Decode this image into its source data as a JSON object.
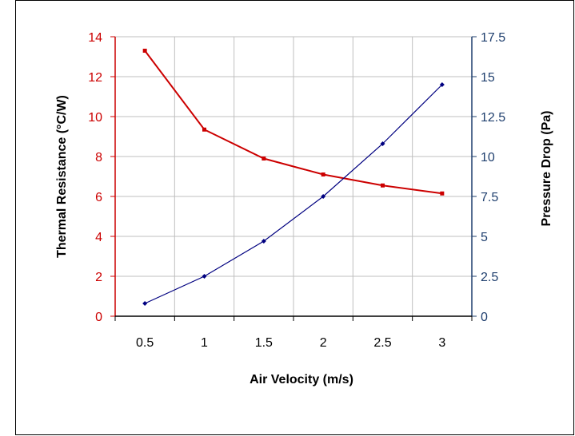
{
  "chart_data": {
    "type": "line",
    "title": "",
    "xlabel": "Air Velocity (m/s)",
    "ylabel_left": "Thermal Resistance (°C/W)",
    "ylabel_right": "Pressure Drop (Pa)",
    "categories": [
      "0.5",
      "1",
      "1.5",
      "2",
      "2.5",
      "3"
    ],
    "y_left": {
      "min": 0,
      "max": 14,
      "ticks": [
        "0",
        "2",
        "4",
        "6",
        "8",
        "10",
        "12",
        "14"
      ]
    },
    "y_right": {
      "min": 0,
      "max": 17.5,
      "ticks": [
        "0",
        "2.5",
        "5",
        "7.5",
        "10",
        "12.5",
        "15",
        "17.5"
      ]
    },
    "grid": true,
    "series": [
      {
        "axis": "left",
        "color": "#cc0000",
        "marker": "square",
        "values": [
          13.3,
          9.35,
          7.9,
          7.1,
          6.55,
          6.15
        ]
      },
      {
        "axis": "right",
        "color": "#000080",
        "marker": "diamond",
        "values": [
          0.8,
          2.5,
          4.7,
          7.5,
          10.8,
          14.5
        ]
      }
    ]
  }
}
